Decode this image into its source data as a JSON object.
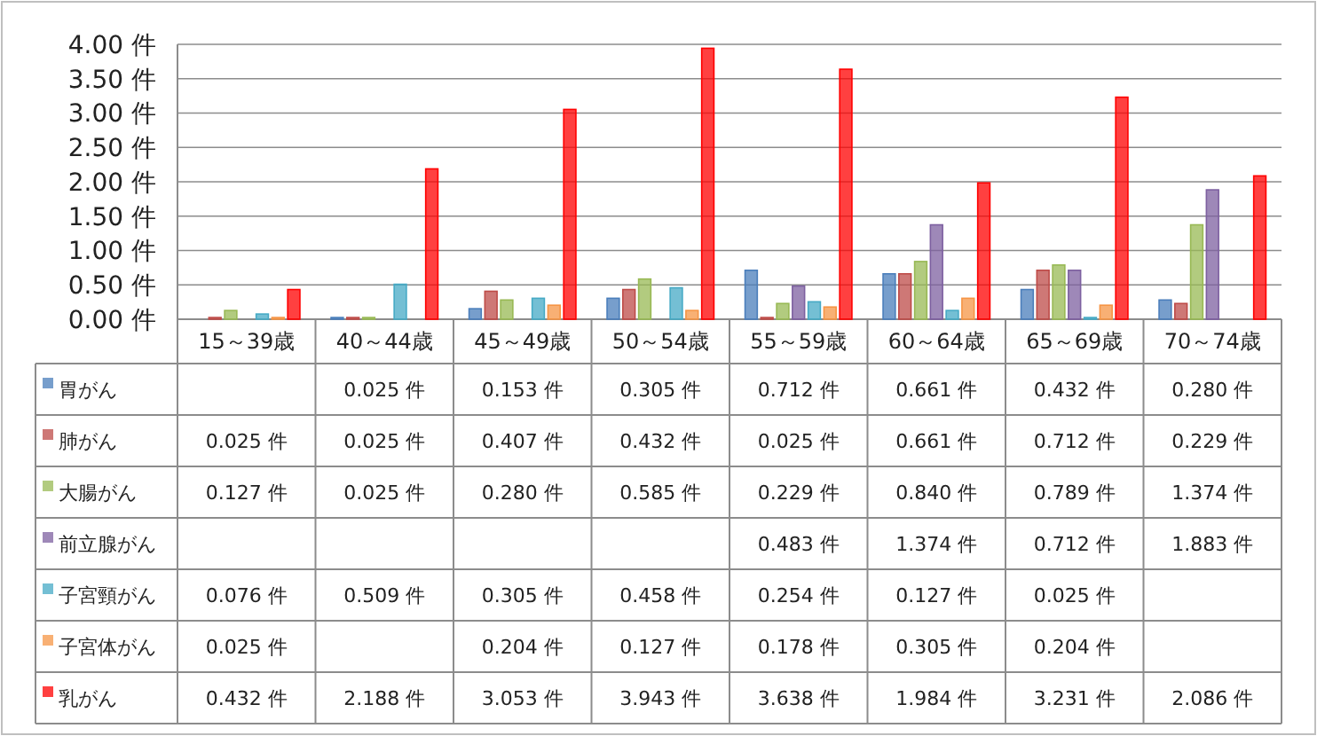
{
  "chart_data": {
    "type": "bar",
    "categories": [
      "15～39歳",
      "40～44歳",
      "45～49歳",
      "50～54歳",
      "55～59歳",
      "60～64歳",
      "65～69歳",
      "70～74歳"
    ],
    "ylim": [
      0,
      4
    ],
    "yticks": [
      {
        "value": 0,
        "label": "0.00 件"
      },
      {
        "value": 0.5,
        "label": "0.50 件"
      },
      {
        "value": 1,
        "label": "1.00 件"
      },
      {
        "value": 1.5,
        "label": "1.50 件"
      },
      {
        "value": 2,
        "label": "2.00 件"
      },
      {
        "value": 2.5,
        "label": "2.50 件"
      },
      {
        "value": 3,
        "label": "3.00 件"
      },
      {
        "value": 3.5,
        "label": "3.50 件"
      },
      {
        "value": 4,
        "label": "4.00 件"
      }
    ],
    "grid": "y",
    "legend": "bottom",
    "series": [
      {
        "name": "胃がん",
        "color": "#4a7ebb",
        "values": [
          null,
          0.025,
          0.153,
          0.305,
          0.712,
          0.661,
          0.432,
          0.28
        ],
        "value_labels": [
          null,
          "0.025 件",
          "0.153 件",
          "0.305 件",
          "0.712 件",
          "0.661 件",
          "0.432 件",
          "0.280 件"
        ]
      },
      {
        "name": "肺がん",
        "color": "#be4b48",
        "values": [
          0.025,
          0.025,
          0.407,
          0.432,
          0.025,
          0.661,
          0.712,
          0.229
        ],
        "value_labels": [
          "0.025 件",
          "0.025 件",
          "0.407 件",
          "0.432 件",
          "0.025 件",
          "0.661 件",
          "0.712 件",
          "0.229 件"
        ]
      },
      {
        "name": "大腸がん",
        "color": "#98b954",
        "values": [
          0.127,
          0.025,
          0.28,
          0.585,
          0.229,
          0.84,
          0.789,
          1.374
        ],
        "value_labels": [
          "0.127 件",
          "0.025 件",
          "0.280 件",
          "0.585 件",
          "0.229 件",
          "0.840 件",
          "0.789 件",
          "1.374 件"
        ]
      },
      {
        "name": "前立腺がん",
        "color": "#7d60a0",
        "values": [
          null,
          null,
          null,
          null,
          0.483,
          1.374,
          0.712,
          1.883
        ],
        "value_labels": [
          null,
          null,
          null,
          null,
          "0.483 件",
          "1.374 件",
          "0.712 件",
          "1.883 件"
        ]
      },
      {
        "name": "子宮頸がん",
        "color": "#46aac5",
        "values": [
          0.076,
          0.509,
          0.305,
          0.458,
          0.254,
          0.127,
          0.025,
          null
        ],
        "value_labels": [
          "0.076 件",
          "0.509 件",
          "0.305 件",
          "0.458 件",
          "0.254 件",
          "0.127 件",
          "0.025 件",
          null
        ]
      },
      {
        "name": "子宮体がん",
        "color": "#f69545",
        "values": [
          0.025,
          null,
          0.204,
          0.127,
          0.178,
          0.305,
          0.204,
          null
        ],
        "value_labels": [
          "0.025 件",
          null,
          "0.204 件",
          "0.127 件",
          "0.178 件",
          "0.305 件",
          "0.204 件",
          null
        ]
      },
      {
        "name": "乳がん",
        "color": "#ff0000",
        "values": [
          0.432,
          2.188,
          3.053,
          3.943,
          3.638,
          1.984,
          3.231,
          2.086
        ],
        "value_labels": [
          "0.432 件",
          "2.188 件",
          "3.053 件",
          "3.943 件",
          "3.638 件",
          "1.984 件",
          "3.231 件",
          "2.086 件"
        ]
      }
    ]
  }
}
